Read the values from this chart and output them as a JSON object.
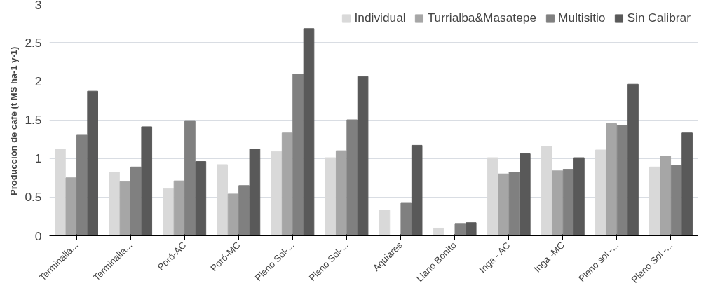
{
  "chart_data": {
    "type": "bar",
    "ylabel": "Producción  de café (t MS ha-1 y-1)",
    "categories": [
      "Terminalia...",
      "Terminalia...",
      "Poró-AC",
      "Poró-MC",
      "Pleno Sol-...",
      "Pleno Sol-...",
      "Aquiares",
      "Llano Bonito",
      "Inga - AC",
      "Inga -MC",
      "Pleno sol -...",
      "Pleno Sol -..."
    ],
    "series": [
      {
        "name": "Individual",
        "color": "#d9d9d9",
        "values": [
          1.12,
          0.82,
          0.61,
          0.92,
          1.09,
          1.01,
          0.33,
          0.1,
          1.01,
          1.16,
          1.11,
          0.89
        ]
      },
      {
        "name": "Turrialba&Masatepe",
        "color": "#a6a6a6",
        "values": [
          0.75,
          0.7,
          0.71,
          0.54,
          1.33,
          1.1,
          null,
          null,
          0.8,
          0.84,
          1.45,
          1.03
        ]
      },
      {
        "name": "Multisitio",
        "color": "#808080",
        "values": [
          1.31,
          0.89,
          1.49,
          0.65,
          2.09,
          1.5,
          0.43,
          0.16,
          0.82,
          0.86,
          1.43,
          0.91
        ]
      },
      {
        "name": "Sin Calibrar",
        "color": "#595959",
        "values": [
          1.87,
          1.41,
          0.96,
          1.12,
          2.68,
          2.06,
          1.17,
          0.17,
          1.06,
          1.01,
          1.96,
          1.33
        ]
      }
    ],
    "ylim": [
      0,
      3
    ],
    "yticks": [
      0,
      0.5,
      1,
      1.5,
      2,
      2.5,
      3
    ],
    "grid": "y",
    "legend": "top right"
  }
}
